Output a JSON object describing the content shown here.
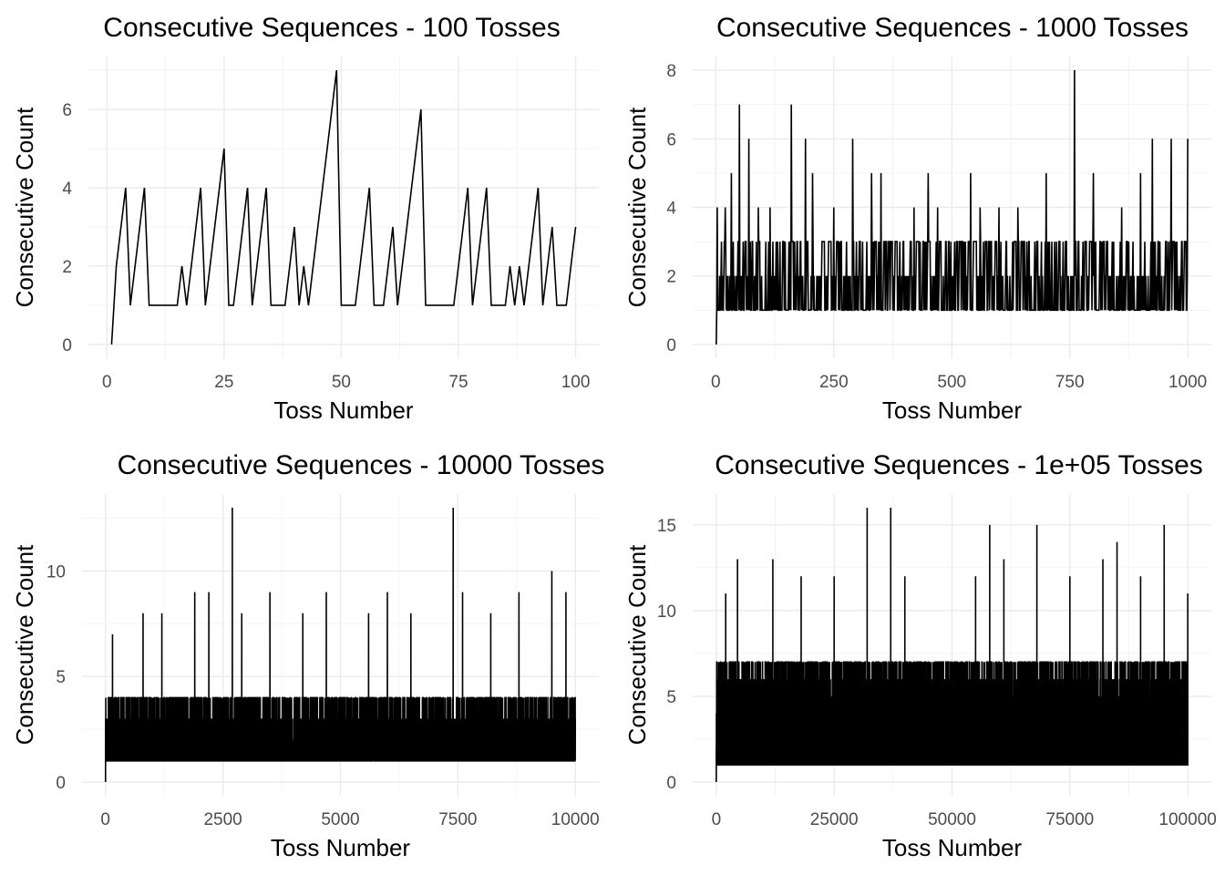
{
  "chart_data": [
    {
      "type": "line",
      "title": "Consecutive Sequences - 100 Tosses",
      "xlabel": "Toss Number",
      "ylabel": "Consecutive Count",
      "xlim": [
        1,
        100
      ],
      "ylim": [
        0,
        7
      ],
      "x_ticks": [
        0,
        25,
        50,
        75,
        100
      ],
      "y_ticks": [
        0,
        2,
        4,
        6
      ],
      "grid": true,
      "series": [
        {
          "x": [
            1,
            2,
            3,
            4,
            5,
            6,
            7,
            8,
            9,
            10,
            11,
            12,
            13,
            14,
            15,
            16,
            17,
            18,
            19,
            20,
            21,
            22,
            23,
            24,
            25,
            26,
            27,
            28,
            29,
            30,
            31,
            32,
            33,
            34,
            35,
            36,
            37,
            38,
            39,
            40,
            41,
            42,
            43,
            44,
            45,
            46,
            47,
            48,
            49,
            50,
            51,
            52,
            53,
            54,
            55,
            56,
            57,
            58,
            59,
            60,
            61,
            62,
            63,
            64,
            65,
            66,
            67,
            68,
            69,
            70,
            71,
            72,
            73,
            74,
            75,
            76,
            77,
            78,
            79,
            80,
            81,
            82,
            83,
            84,
            85,
            86,
            87,
            88,
            89,
            90,
            91,
            92,
            93,
            94,
            95,
            96,
            97,
            98,
            99,
            100
          ],
          "values": [
            0,
            2,
            3,
            4,
            1,
            2,
            3,
            4,
            1,
            1,
            1,
            1,
            1,
            1,
            1,
            2,
            1,
            2,
            3,
            4,
            1,
            2,
            3,
            4,
            5,
            1,
            1,
            2,
            3,
            4,
            1,
            2,
            3,
            4,
            1,
            1,
            1,
            1,
            2,
            3,
            1,
            2,
            1,
            2,
            3,
            4,
            5,
            6,
            7,
            1,
            1,
            1,
            1,
            2,
            3,
            4,
            1,
            1,
            1,
            2,
            3,
            1,
            2,
            3,
            4,
            5,
            6,
            1,
            1,
            1,
            1,
            1,
            1,
            1,
            2,
            3,
            4,
            1,
            2,
            3,
            4,
            1,
            1,
            1,
            1,
            2,
            1,
            2,
            1,
            2,
            3,
            4,
            1,
            2,
            3,
            1,
            1,
            1,
            2,
            3
          ]
        }
      ]
    },
    {
      "type": "line",
      "title": "Consecutive Sequences - 1000 Tosses",
      "xlabel": "Toss Number",
      "ylabel": "Consecutive Count",
      "xlim": [
        1,
        1000
      ],
      "ylim": [
        0,
        8
      ],
      "x_ticks": [
        0,
        250,
        500,
        750,
        1000
      ],
      "y_ticks": [
        0,
        2,
        4,
        6,
        8
      ],
      "grid": true,
      "series": [
        {
          "generator": {
            "n": 1000,
            "base_max": 3,
            "seed": 11
          },
          "peaks": [
            [
              3,
              4
            ],
            [
              20,
              4
            ],
            [
              33,
              5
            ],
            [
              50,
              7
            ],
            [
              70,
              6
            ],
            [
              90,
              4
            ],
            [
              115,
              4
            ],
            [
              160,
              7
            ],
            [
              190,
              6
            ],
            [
              205,
              5
            ],
            [
              250,
              4
            ],
            [
              290,
              6
            ],
            [
              330,
              5
            ],
            [
              350,
              5
            ],
            [
              420,
              4
            ],
            [
              450,
              5
            ],
            [
              470,
              4
            ],
            [
              540,
              5
            ],
            [
              560,
              4
            ],
            [
              600,
              4
            ],
            [
              640,
              4
            ],
            [
              700,
              5
            ],
            [
              760,
              8
            ],
            [
              800,
              5
            ],
            [
              860,
              4
            ],
            [
              900,
              5
            ],
            [
              925,
              6
            ],
            [
              965,
              6
            ],
            [
              1000,
              6
            ]
          ]
        }
      ]
    },
    {
      "type": "line",
      "title": "Consecutive Sequences - 10000 Tosses",
      "xlabel": "Toss Number",
      "ylabel": "Consecutive Count",
      "xlim": [
        1,
        10000
      ],
      "ylim": [
        0,
        13
      ],
      "x_ticks": [
        0,
        2500,
        5000,
        7500,
        10000
      ],
      "y_ticks": [
        0,
        5,
        10
      ],
      "grid": true,
      "series": [
        {
          "generator": {
            "n": 10000,
            "base_max": 4,
            "seed": 23
          },
          "peaks": [
            [
              150,
              7
            ],
            [
              800,
              8
            ],
            [
              1200,
              8
            ],
            [
              1900,
              9
            ],
            [
              2200,
              9
            ],
            [
              2700,
              13
            ],
            [
              2900,
              8
            ],
            [
              3500,
              9
            ],
            [
              4200,
              8
            ],
            [
              4700,
              9
            ],
            [
              5600,
              8
            ],
            [
              6000,
              9
            ],
            [
              6500,
              8
            ],
            [
              7400,
              13
            ],
            [
              7600,
              9
            ],
            [
              8200,
              8
            ],
            [
              8800,
              9
            ],
            [
              9500,
              10
            ],
            [
              9800,
              9
            ]
          ]
        }
      ]
    },
    {
      "type": "line",
      "title": "Consecutive Sequences - 1e+05 Tosses",
      "xlabel": "Toss Number",
      "ylabel": "Consecutive Count",
      "xlim": [
        1,
        100000
      ],
      "ylim": [
        0,
        16
      ],
      "x_ticks": [
        0,
        25000,
        50000,
        75000,
        100000
      ],
      "y_ticks": [
        0,
        5,
        10,
        15
      ],
      "grid": true,
      "series": [
        {
          "generator": {
            "n": 100000,
            "base_max": 7,
            "seed": 37
          },
          "peaks": [
            [
              2000,
              11
            ],
            [
              4500,
              13
            ],
            [
              12000,
              13
            ],
            [
              18000,
              12
            ],
            [
              25000,
              12
            ],
            [
              32000,
              16
            ],
            [
              37000,
              16
            ],
            [
              40000,
              12
            ],
            [
              55000,
              12
            ],
            [
              58000,
              15
            ],
            [
              61000,
              13
            ],
            [
              68000,
              15
            ],
            [
              75000,
              12
            ],
            [
              82000,
              13
            ],
            [
              85000,
              14
            ],
            [
              90000,
              12
            ],
            [
              95000,
              15
            ],
            [
              100000,
              11
            ]
          ]
        }
      ]
    }
  ]
}
